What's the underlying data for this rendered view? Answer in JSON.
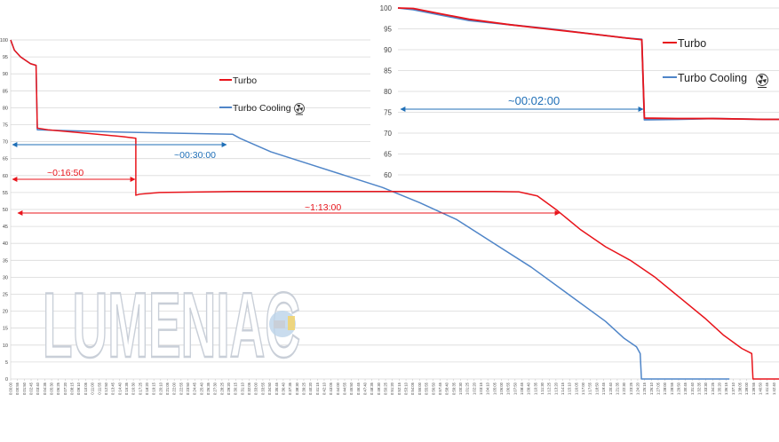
{
  "watermark": {
    "text": "LUMENIAC"
  },
  "fan_icon": {
    "icon": "fan-icon"
  },
  "colors": {
    "turbo": "#e8141b",
    "turbo_cooling": "#4f85c8",
    "annot_blue": "#1f6fb7",
    "grid": "#d9d9d9",
    "text": "#444444",
    "watermark": "#c9cfd8"
  },
  "chart_data": [
    {
      "id": "main",
      "type": "line",
      "title": "",
      "xlabel": "",
      "ylabel": "",
      "ylim": [
        0,
        100
      ],
      "yticks": [
        0,
        5,
        10,
        15,
        20,
        25,
        30,
        35,
        40,
        45,
        50,
        55,
        60,
        65,
        70,
        75,
        80,
        85,
        90,
        95,
        100
      ],
      "xlim": [
        0,
        6200
      ],
      "x_tick_step": 55,
      "grid": true,
      "legend": {
        "position": "top-center",
        "entries": [
          {
            "name": "Turbo",
            "color": "#e8141b"
          },
          {
            "name": "Turbo Cooling",
            "color": "#4f85c8"
          }
        ]
      },
      "series": [
        {
          "name": "Turbo",
          "color": "#e8141b",
          "points": [
            [
              0,
              100
            ],
            [
              30,
              97
            ],
            [
              80,
              95
            ],
            [
              160,
              93
            ],
            [
              205,
              92.5
            ],
            [
              215,
              74
            ],
            [
              300,
              73.5
            ],
            [
              600,
              72.5
            ],
            [
              900,
              71.5
            ],
            [
              1010,
              71
            ],
            [
              1010,
              54.2
            ],
            [
              1040,
              54.5
            ],
            [
              1200,
              55
            ],
            [
              1800,
              55.3
            ],
            [
              2400,
              55.3
            ],
            [
              3300,
              55.3
            ],
            [
              3900,
              55.3
            ],
            [
              4100,
              55.2
            ],
            [
              4250,
              54
            ],
            [
              4400,
              50
            ],
            [
              4600,
              44
            ],
            [
              4800,
              39
            ],
            [
              5000,
              35
            ],
            [
              5200,
              30
            ],
            [
              5400,
              24
            ],
            [
              5600,
              18
            ],
            [
              5750,
              13
            ],
            [
              5900,
              9
            ],
            [
              5980,
              7.5
            ],
            [
              5990,
              0
            ],
            [
              6200,
              0
            ]
          ]
        },
        {
          "name": "Turbo Cooling",
          "color": "#4f85c8",
          "points": [
            [
              0,
              100
            ],
            [
              30,
              97
            ],
            [
              80,
              95
            ],
            [
              160,
              93
            ],
            [
              205,
              92.5
            ],
            [
              215,
              73.5
            ],
            [
              500,
              73.2
            ],
            [
              900,
              72.8
            ],
            [
              1300,
              72.5
            ],
            [
              1790,
              72.2
            ],
            [
              1850,
              71
            ],
            [
              2100,
              67
            ],
            [
              2400,
              63.5
            ],
            [
              2700,
              60
            ],
            [
              3000,
              56.5
            ],
            [
              3300,
              52
            ],
            [
              3600,
              47
            ],
            [
              3900,
              40
            ],
            [
              4200,
              33
            ],
            [
              4500,
              25
            ],
            [
              4800,
              17
            ],
            [
              4950,
              12
            ],
            [
              5050,
              9.5
            ],
            [
              5080,
              7.5
            ],
            [
              5090,
              0
            ],
            [
              5800,
              0
            ]
          ]
        }
      ],
      "annotations": [
        {
          "label": "~0:16:50",
          "color": "#e8141b"
        },
        {
          "label": "~00:30:00",
          "color": "#1f6fb7"
        },
        {
          "label": "~1:13:00",
          "color": "#e8141b"
        }
      ]
    },
    {
      "id": "inset",
      "type": "line",
      "title": "",
      "xlabel": "",
      "ylabel": "",
      "ylim": [
        60,
        100
      ],
      "yticks": [
        60,
        65,
        70,
        75,
        80,
        85,
        90,
        95,
        100
      ],
      "xlim": [
        0,
        7.5
      ],
      "grid": true,
      "legend": {
        "position": "right",
        "entries": [
          {
            "name": "Turbo",
            "color": "#e8141b"
          },
          {
            "name": "Turbo Cooling",
            "color": "#4f85c8"
          }
        ]
      },
      "series": [
        {
          "name": "Turbo",
          "color": "#e8141b",
          "points": [
            [
              0,
              100
            ],
            [
              0.3,
              99.9
            ],
            [
              0.8,
              98.7
            ],
            [
              1.4,
              97.3
            ],
            [
              2.2,
              96.0
            ],
            [
              3.0,
              94.9
            ],
            [
              3.8,
              93.8
            ],
            [
              4.5,
              92.8
            ],
            [
              4.8,
              92.4
            ],
            [
              4.85,
              73.6
            ],
            [
              5.5,
              73.5
            ],
            [
              6.2,
              73.5
            ],
            [
              7.2,
              73.3
            ],
            [
              7.5,
              73.3
            ]
          ]
        },
        {
          "name": "Turbo Cooling",
          "color": "#4f85c8",
          "points": [
            [
              0,
              100
            ],
            [
              0.3,
              99.6
            ],
            [
              0.8,
              98.4
            ],
            [
              1.4,
              97.0
            ],
            [
              2.2,
              96.0
            ],
            [
              3.0,
              95.0
            ],
            [
              3.8,
              93.8
            ],
            [
              4.5,
              92.8
            ],
            [
              4.8,
              92.5
            ],
            [
              4.85,
              73.2
            ],
            [
              5.5,
              73.3
            ],
            [
              6.2,
              73.5
            ],
            [
              7.2,
              73.3
            ],
            [
              7.5,
              73.3
            ]
          ]
        }
      ],
      "annotations": [
        {
          "label": "~00:02:00",
          "color": "#1f6fb7"
        }
      ]
    }
  ]
}
